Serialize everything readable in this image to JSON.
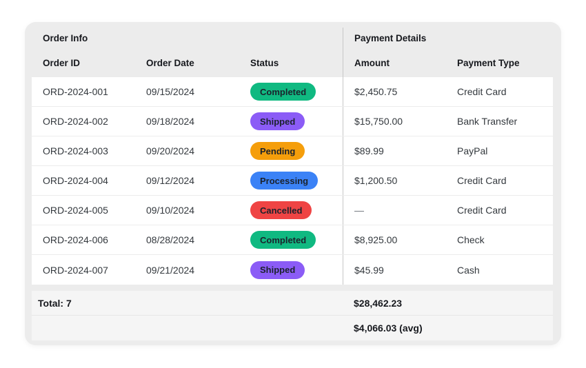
{
  "table": {
    "groups": [
      {
        "label": "Order Info"
      },
      {
        "label": "Payment Details"
      }
    ],
    "columns": [
      "Order ID",
      "Order Date",
      "Status",
      "Amount",
      "Payment Type"
    ],
    "rows": [
      {
        "order_id": "ORD-2024-001",
        "order_date": "09/15/2024",
        "status": "Completed",
        "amount": "$2,450.75",
        "payment_type": "Credit Card"
      },
      {
        "order_id": "ORD-2024-002",
        "order_date": "09/18/2024",
        "status": "Shipped",
        "amount": "$15,750.00",
        "payment_type": "Bank Transfer"
      },
      {
        "order_id": "ORD-2024-003",
        "order_date": "09/20/2024",
        "status": "Pending",
        "amount": "$89.99",
        "payment_type": "PayPal"
      },
      {
        "order_id": "ORD-2024-004",
        "order_date": "09/12/2024",
        "status": "Processing",
        "amount": "$1,200.50",
        "payment_type": "Credit Card"
      },
      {
        "order_id": "ORD-2024-005",
        "order_date": "09/10/2024",
        "status": "Cancelled",
        "amount": "—",
        "payment_type": "Credit Card"
      },
      {
        "order_id": "ORD-2024-006",
        "order_date": "08/28/2024",
        "status": "Completed",
        "amount": "$8,925.00",
        "payment_type": "Check"
      },
      {
        "order_id": "ORD-2024-007",
        "order_date": "09/21/2024",
        "status": "Shipped",
        "amount": "$45.99",
        "payment_type": "Cash"
      }
    ],
    "status_colors": {
      "Completed": "#10b981",
      "Shipped": "#8b5cf6",
      "Pending": "#f59e0b",
      "Processing": "#3b82f6",
      "Cancelled": "#ef4444"
    },
    "footer": {
      "total_label": "Total: 7",
      "total_amount": "$28,462.23",
      "avg_amount": "$4,066.03 (avg)"
    }
  }
}
